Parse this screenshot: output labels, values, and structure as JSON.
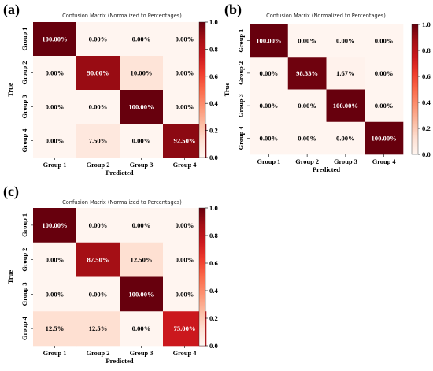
{
  "chart_data": [
    {
      "type": "heatmap",
      "panel_label": "(a)",
      "title": "Confusion Matrix (Normalized to Percentages)",
      "xlabel": "Predicted",
      "ylabel": "True",
      "x_categories": [
        "Group 1",
        "Group 2",
        "Group 3",
        "Group 4"
      ],
      "y_categories": [
        "Group 1",
        "Group 2",
        "Group 3",
        "Group 4"
      ],
      "values": [
        [
          1.0,
          0.0,
          0.0,
          0.0
        ],
        [
          0.0,
          0.9,
          0.1,
          0.0
        ],
        [
          0.0,
          0.0,
          1.0,
          0.0
        ],
        [
          0.0,
          0.075,
          0.0,
          0.925
        ]
      ],
      "cell_labels": [
        [
          "100.00%",
          "0.00%",
          "0.00%",
          "0.00%"
        ],
        [
          "0.00%",
          "90.00%",
          "10.00%",
          "0.00%"
        ],
        [
          "0.00%",
          "0.00%",
          "100.00%",
          "0.00%"
        ],
        [
          "0.00%",
          "7.50%",
          "0.00%",
          "92.50%"
        ]
      ],
      "colorbar": {
        "min": 0.0,
        "max": 1.0,
        "ticks": [
          "0.0",
          "0.2",
          "0.4",
          "0.6",
          "0.8",
          "1.0"
        ]
      },
      "colormap": "Reds"
    },
    {
      "type": "heatmap",
      "panel_label": "(b)",
      "title": "Confusion Matrix (Normalized to Percentages)",
      "xlabel": "Predicted",
      "ylabel": "True",
      "x_categories": [
        "Group 1",
        "Group 2",
        "Group 3",
        "Group 4"
      ],
      "y_categories": [
        "Group 1",
        "Group 2",
        "Group 3",
        "Group 4"
      ],
      "values": [
        [
          1.0,
          0.0,
          0.0,
          0.0
        ],
        [
          0.0,
          0.9833,
          0.0167,
          0.0
        ],
        [
          0.0,
          0.0,
          1.0,
          0.0
        ],
        [
          0.0,
          0.0,
          0.0,
          1.0
        ]
      ],
      "cell_labels": [
        [
          "100.00%",
          "0.00%",
          "0.00%",
          "0.00%"
        ],
        [
          "0.00%",
          "98.33%",
          "1.67%",
          "0.00%"
        ],
        [
          "0.00%",
          "0.00%",
          "100.00%",
          "0.00%"
        ],
        [
          "0.00%",
          "0.00%",
          "0.00%",
          "100.00%"
        ]
      ],
      "colorbar": {
        "min": 0.0,
        "max": 1.0,
        "ticks": [
          "0.0",
          "0.2",
          "0.4",
          "0.6",
          "0.8",
          "1.0"
        ]
      },
      "colormap": "Reds"
    },
    {
      "type": "heatmap",
      "panel_label": "(c)",
      "title": "Confusion Matrix (Normalized to Percentages)",
      "xlabel": "Predicted",
      "ylabel": "True",
      "x_categories": [
        "Group 1",
        "Group 2",
        "Group 3",
        "Group 4"
      ],
      "y_categories": [
        "Group 1",
        "Group 2",
        "Group 3",
        "Group 4"
      ],
      "values": [
        [
          1.0,
          0.0,
          0.0,
          0.0
        ],
        [
          0.0,
          0.875,
          0.125,
          0.0
        ],
        [
          0.0,
          0.0,
          1.0,
          0.0
        ],
        [
          0.125,
          0.125,
          0.0,
          0.75
        ]
      ],
      "cell_labels": [
        [
          "100.00%",
          "0.00%",
          "0.00%",
          "0.00%"
        ],
        [
          "0.00%",
          "87.50%",
          "12.50%",
          "0.00%"
        ],
        [
          "0.00%",
          "0.00%",
          "100.00%",
          "0.00%"
        ],
        [
          "12.5%",
          "12.5%",
          "0.00%",
          "75.00%"
        ]
      ],
      "colorbar": {
        "min": 0.0,
        "max": 1.0,
        "ticks": [
          "0.0",
          "0.2",
          "0.4",
          "0.6",
          "0.8",
          "1.0"
        ]
      },
      "colormap": "Reds"
    }
  ]
}
